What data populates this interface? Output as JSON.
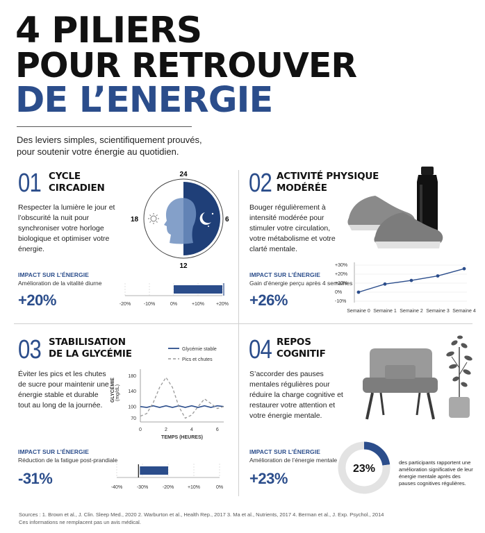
{
  "header": {
    "title_line1": "4 PILIERS",
    "title_line2": "POUR RETROUVER",
    "title_line3": "DE L’ENERGIE",
    "subtitle": "Des leviers simples, scientifiquement prouvés, pour soutenir votre énergie au quotidien."
  },
  "colors": {
    "accent": "#2b4d8b",
    "text": "#111111",
    "muted": "#555555"
  },
  "pillars": [
    {
      "number": "01",
      "title_line1": "CYCLE",
      "title_line2": "CIRCADIEN",
      "description": "Respecter la lumière le jour et l’obscurité la nuit pour synchroniser votre horloge biologique et optimiser votre énergie.",
      "impact_label": "IMPACT SUR L’ÉNERGIE",
      "impact_desc": "Amélioration de la vitalité diurne",
      "impact_value": "+20%",
      "clock_labels": {
        "top": "24",
        "bottom": "12",
        "left": "18",
        "right": "6"
      },
      "icons": {
        "day": "sun-icon",
        "night": "moon-stars-icon"
      }
    },
    {
      "number": "02",
      "title_line1": "ACTIVITÉ PHYSIQUE",
      "title_line2": "MODÉRÉE",
      "description": "Bouger régulièrement à intensité modérée pour stimuler votre circulation, votre métabolisme et votre clarté mentale.",
      "impact_label": "IMPACT SUR L’ÉNERGIE",
      "impact_desc": "Gain d’énergie perçu après 4 semaines",
      "impact_value": "+26%"
    },
    {
      "number": "03",
      "title_line1": "STABILISATION",
      "title_line2": "DE LA GLYCÉMIE",
      "description": "Éviter les pics et les chutes de sucre pour maintenir une énergie stable et durable tout au long de la journée.",
      "impact_label": "IMPACT SUR L’ÉNERGIE",
      "impact_desc": "Réduction de la fatigue post-prandiale",
      "impact_value": "-31%"
    },
    {
      "number": "04",
      "title_line1": "REPOS",
      "title_line2": "COGNITIF",
      "description": "S’accorder des pauses mentales régulières pour réduire la charge cognitive et restaurer votre attention et votre énergie mentale.",
      "impact_label": "IMPACT SUR L’ÉNERGIE",
      "impact_desc": "Amélioration de l’énergie mentale",
      "impact_value": "+23%",
      "donut_caption": "des participants rapportent une amélioration significative de leur énergie mentale après des pauses cognitives régulières."
    }
  ],
  "footer": {
    "sources": "Sources : 1. Brown et al., J. Clin. Sleep Med., 2020   2. Warburton et al., Health Rep., 2017   3. Ma et al., Nutrients, 2017   4. Berman et al., J. Exp. Psychol., 2014",
    "disclaimer": "Ces informations ne remplacent pas un avis médical."
  },
  "chart_data": [
    {
      "type": "bar",
      "orientation": "horizontal",
      "categories": [
        ""
      ],
      "values": [
        20
      ],
      "xlim": [
        -20,
        20
      ],
      "xticks": [
        "-20%",
        "-10%",
        "0%",
        "+10%",
        "+20%"
      ]
    },
    {
      "type": "line",
      "x": [
        "Semaine 0",
        "Semaine 1",
        "Semaine 2",
        "Semaine 3",
        "Semaine 4"
      ],
      "values": [
        0,
        9,
        13,
        18,
        26
      ],
      "ylim": [
        -10,
        30
      ],
      "yticks": [
        "+30%",
        "+20%",
        "+10%",
        "0%",
        "-10%"
      ]
    },
    {
      "type": "line",
      "xlabel": "TEMPS (HEURES)",
      "ylabel": "GLYCÉMIE",
      "yunit": "(mg/dL)",
      "xlim": [
        0,
        6.5
      ],
      "ylim": [
        60,
        190
      ],
      "xticks": [
        "0",
        "2",
        "4",
        "6"
      ],
      "yticks": [
        "180",
        "140",
        "100",
        "70"
      ],
      "series": [
        {
          "name": "Glycémie stable",
          "x": [
            0,
            0.5,
            1,
            1.5,
            2,
            2.5,
            3,
            3.5,
            4,
            4.5,
            5,
            5.5,
            6,
            6.5
          ],
          "values": [
            100,
            98,
            102,
            98,
            102,
            98,
            102,
            98,
            102,
            98,
            102,
            98,
            102,
            100
          ]
        },
        {
          "name": "Pics et chutes",
          "x": [
            0,
            0.5,
            1,
            1.5,
            2,
            2.5,
            3,
            3.5,
            4,
            4.5,
            5,
            5.5,
            6,
            6.5
          ],
          "values": [
            75,
            82,
            110,
            150,
            176,
            150,
            100,
            70,
            78,
            100,
            120,
            108,
            95,
            100
          ]
        }
      ]
    },
    {
      "type": "bar",
      "orientation": "horizontal",
      "categories": [
        ""
      ],
      "values": [
        -31
      ],
      "xlim": [
        -40,
        0
      ],
      "xticks": [
        "-40%",
        "-30%",
        "-20%",
        "+10%",
        "0%"
      ]
    },
    {
      "type": "pie",
      "categories": [
        "",
        ""
      ],
      "values": [
        23,
        77
      ],
      "center_label": "23%"
    }
  ]
}
